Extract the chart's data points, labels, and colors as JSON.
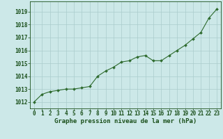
{
  "x": [
    0,
    1,
    2,
    3,
    4,
    5,
    6,
    7,
    8,
    9,
    10,
    11,
    12,
    13,
    14,
    15,
    16,
    17,
    18,
    19,
    20,
    21,
    22,
    23
  ],
  "y": [
    1012.0,
    1012.6,
    1012.8,
    1012.9,
    1013.0,
    1013.0,
    1013.1,
    1013.2,
    1014.0,
    1014.4,
    1014.7,
    1015.1,
    1015.2,
    1015.5,
    1015.6,
    1015.2,
    1015.2,
    1015.6,
    1016.0,
    1016.4,
    1016.9,
    1017.4,
    1018.5,
    1019.2
  ],
  "line_color": "#2d6a2d",
  "marker": "D",
  "marker_size": 2.0,
  "bg_color": "#cce8e8",
  "grid_color": "#aacccc",
  "title": "Graphe pression niveau de la mer (hPa)",
  "title_color": "#1a4f1a",
  "title_fontsize": 6.5,
  "ylabel_ticks": [
    1012,
    1013,
    1014,
    1015,
    1016,
    1017,
    1018,
    1019
  ],
  "ylim": [
    1011.5,
    1019.8
  ],
  "xlim": [
    -0.5,
    23.5
  ],
  "tick_fontsize": 5.5,
  "tick_color": "#1a4f1a"
}
